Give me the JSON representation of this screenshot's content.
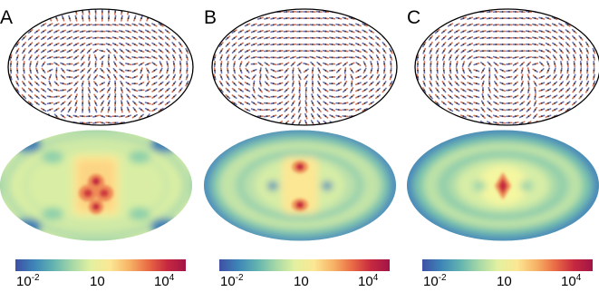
{
  "colormap": [
    "#3f4fa5",
    "#3d86b8",
    "#62b3b0",
    "#a6d8a7",
    "#e3f1a0",
    "#fbe794",
    "#f7b467",
    "#ea6c45",
    "#c7293f",
    "#a21447"
  ],
  "colorbar": {
    "ticks": [
      {
        "base": "10",
        "exp": "-2"
      },
      {
        "base": "10",
        "exp": ""
      },
      {
        "base": "10",
        "exp": "4"
      }
    ]
  },
  "panels": [
    {
      "label": "A",
      "vector_pattern": "three lobes, central figure-eight",
      "hotspot": "red diamond cluster at center"
    },
    {
      "label": "B",
      "vector_pattern": "three lobes, central ring",
      "hotspot": "two red spots above and below center"
    },
    {
      "label": "C",
      "vector_pattern": "concentric rings around two poles",
      "hotspot": "single red diamond at center"
    }
  ]
}
